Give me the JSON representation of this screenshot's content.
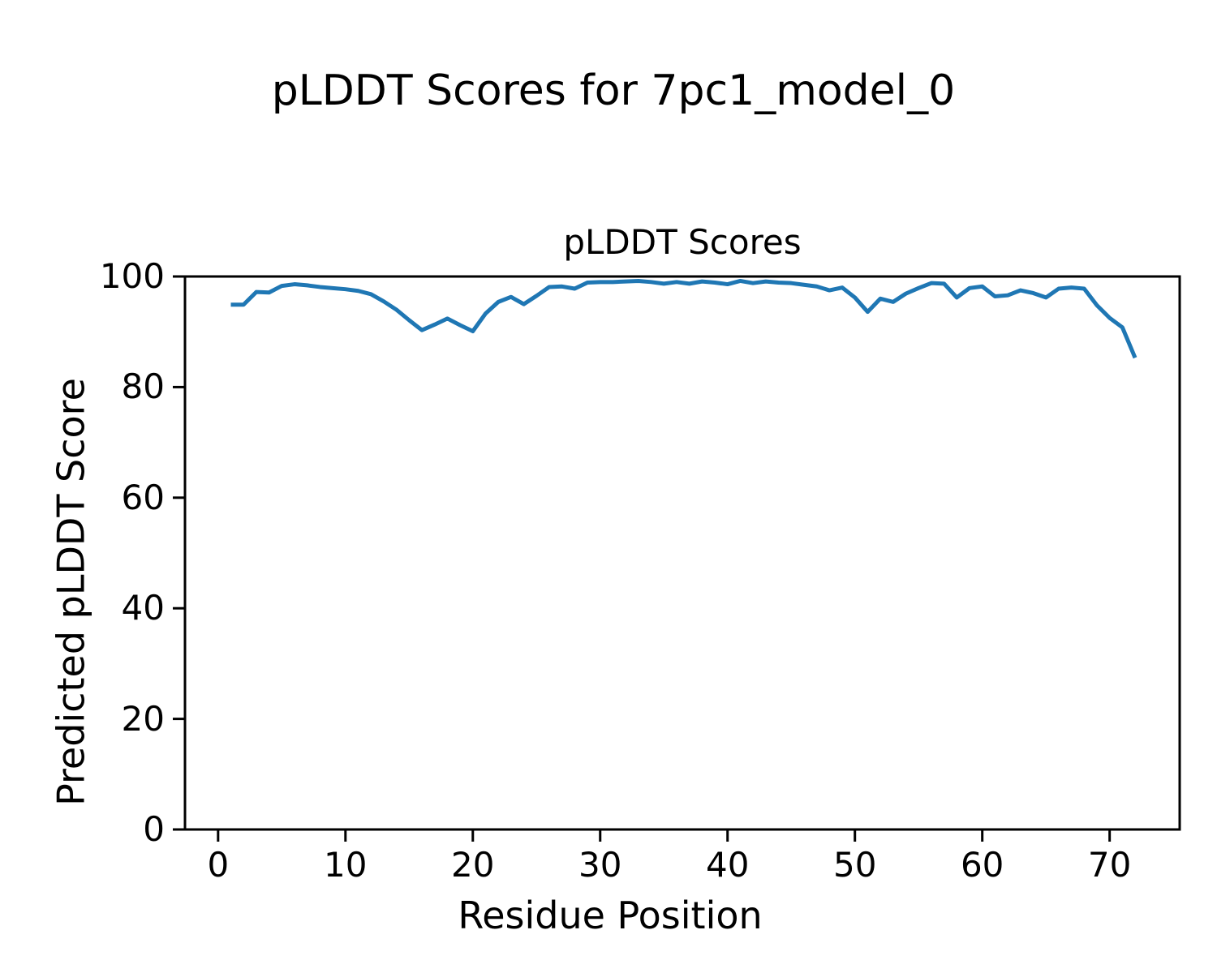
{
  "figure": {
    "suptitle": "pLDDT Scores for 7pc1_model_0",
    "background": "#ffffff",
    "text_color": "#000000"
  },
  "chart_data": {
    "type": "line",
    "title": "pLDDT Scores",
    "xlabel": "Residue Position",
    "ylabel": "Predicted pLDDT Score",
    "legend": null,
    "grid": false,
    "line_color": "#1f77b4",
    "xlim": [
      -2.6,
      75.5
    ],
    "ylim": [
      0,
      100
    ],
    "xticks": [
      0,
      10,
      20,
      30,
      40,
      50,
      60,
      70
    ],
    "yticks": [
      0,
      20,
      40,
      60,
      80,
      100
    ],
    "series_name": "pLDDT",
    "x": [
      1,
      2,
      3,
      4,
      5,
      6,
      7,
      8,
      9,
      10,
      11,
      12,
      13,
      14,
      15,
      16,
      17,
      18,
      19,
      20,
      21,
      22,
      23,
      24,
      25,
      26,
      27,
      28,
      29,
      30,
      31,
      32,
      33,
      34,
      35,
      36,
      37,
      38,
      39,
      40,
      41,
      42,
      43,
      44,
      45,
      46,
      47,
      48,
      49,
      50,
      51,
      52,
      53,
      54,
      55,
      56,
      57,
      58,
      59,
      60,
      61,
      62,
      63,
      64,
      65,
      66,
      67,
      68,
      69,
      70,
      71,
      72
    ],
    "values": [
      94.9,
      94.9,
      97.2,
      97.1,
      98.3,
      98.6,
      98.4,
      98.1,
      97.9,
      97.7,
      97.4,
      96.8,
      95.5,
      94.0,
      92.1,
      90.3,
      91.3,
      92.4,
      91.2,
      90.1,
      93.3,
      95.4,
      96.3,
      95.0,
      96.5,
      98.1,
      98.2,
      97.8,
      98.9,
      99.0,
      99.0,
      99.1,
      99.2,
      99.0,
      98.7,
      99.0,
      98.7,
      99.1,
      98.9,
      98.6,
      99.2,
      98.8,
      99.1,
      98.9,
      98.8,
      98.5,
      98.2,
      97.5,
      98.0,
      96.2,
      93.6,
      96.0,
      95.4,
      96.9,
      97.9,
      98.8,
      98.7,
      96.2,
      97.9,
      98.2,
      96.4,
      96.6,
      97.5,
      97.0,
      96.2,
      97.8,
      98.0,
      97.8,
      94.8,
      92.5,
      90.8,
      85.3
    ]
  }
}
